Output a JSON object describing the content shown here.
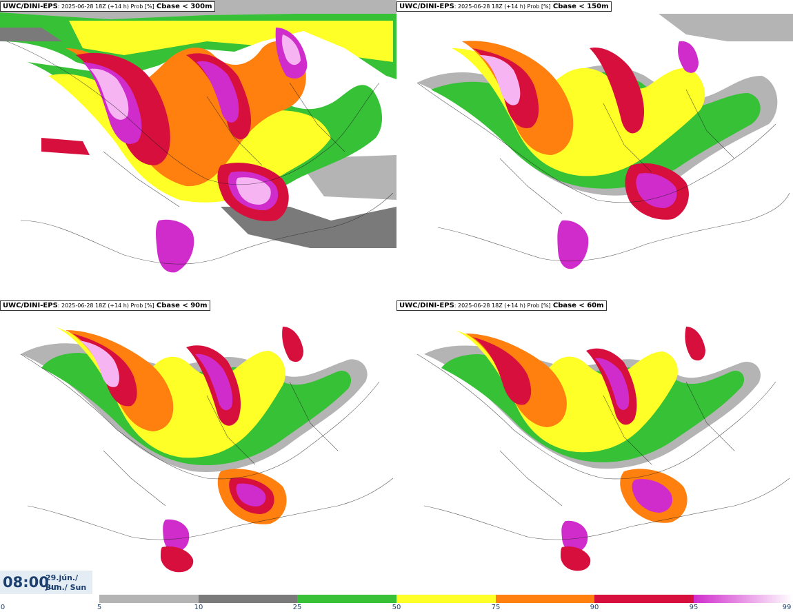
{
  "panels": [
    {
      "model": "UWC/DINI-EPS",
      "meta": ": 2025-06-28 18Z (+14 h) Prob [%]",
      "threshold": "Cbase < 300m"
    },
    {
      "model": "UWC/DINI-EPS",
      "meta": ": 2025-06-28 18Z (+14 h) Prob [%]",
      "threshold": "Cbase < 150m"
    },
    {
      "model": "UWC/DINI-EPS",
      "meta": ": 2025-06-28 18Z (+14 h) Prob [%]",
      "threshold": "Cbase < 90m"
    },
    {
      "model": "UWC/DINI-EPS",
      "meta": ": 2025-06-28 18Z (+14 h) Prob [%]",
      "threshold": "Cbase < 60m"
    }
  ],
  "valid_time": {
    "time": "08:00",
    "date": "29.jún./ Jun",
    "day": "Sun./ Sun"
  },
  "legend": {
    "bounds": [
      "0",
      "5",
      "10",
      "25",
      "50",
      "75",
      "90",
      "95",
      "99"
    ],
    "colors": [
      "#ffffff",
      "#b4b4b4",
      "#7a7a7a",
      "#37c137",
      "#ffff28",
      "#ff7f0f",
      "#d60f3c",
      "#d02ccc",
      "#f7b4f3"
    ]
  }
}
